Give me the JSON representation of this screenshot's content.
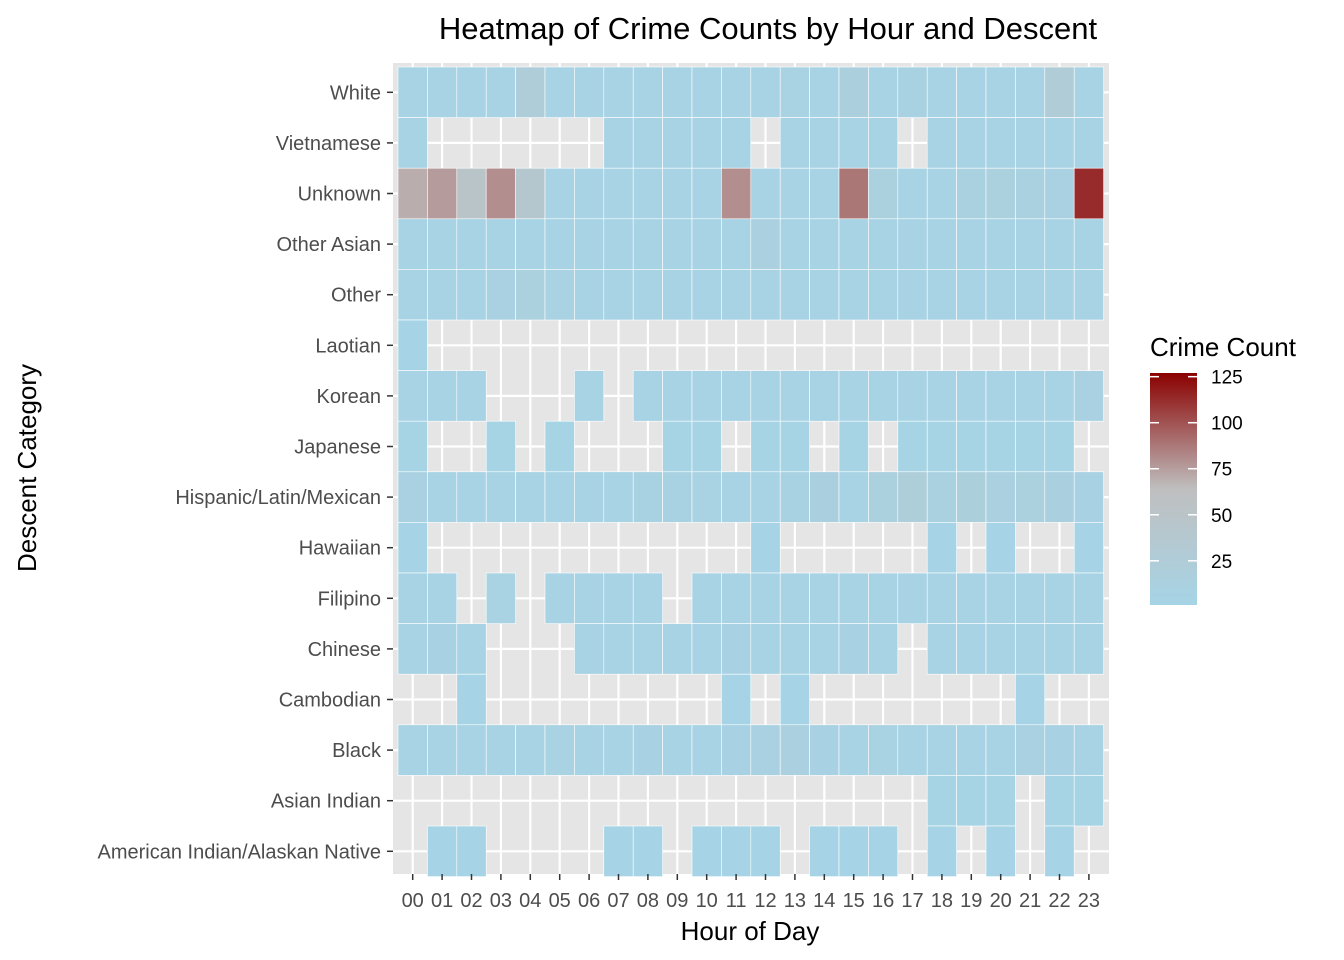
{
  "chart_data": {
    "type": "heatmap",
    "title": "Heatmap of Crime Counts by Hour and Descent",
    "xlabel": "Hour of Day",
    "ylabel": "Descent Category",
    "x_categories": [
      "00",
      "01",
      "02",
      "03",
      "04",
      "05",
      "06",
      "07",
      "08",
      "09",
      "10",
      "11",
      "12",
      "13",
      "14",
      "15",
      "16",
      "17",
      "18",
      "19",
      "20",
      "21",
      "22",
      "23"
    ],
    "y_categories": [
      "White",
      "Vietnamese",
      "Unknown",
      "Other Asian",
      "Other",
      "Laotian",
      "Korean",
      "Japanese",
      "Hispanic/Latin/Mexican",
      "Hawaiian",
      "Filipino",
      "Chinese",
      "Cambodian",
      "Black",
      "Asian Indian",
      "American Indian/Alaskan Native"
    ],
    "rows": [
      {
        "name": "White",
        "values": [
          5,
          5,
          5,
          5,
          22,
          5,
          5,
          5,
          5,
          5,
          5,
          5,
          5,
          8,
          5,
          16,
          5,
          7,
          5,
          5,
          5,
          5,
          26,
          5
        ]
      },
      {
        "name": "Vietnamese",
        "values": [
          3,
          null,
          null,
          null,
          null,
          null,
          null,
          3,
          3,
          3,
          3,
          3,
          null,
          3,
          3,
          3,
          3,
          null,
          3,
          3,
          3,
          3,
          3,
          3
        ]
      },
      {
        "name": "Unknown",
        "values": [
          70,
          76,
          48,
          80,
          40,
          5,
          5,
          5,
          5,
          5,
          5,
          80,
          5,
          5,
          5,
          88,
          14,
          5,
          5,
          11,
          14,
          11,
          9,
          113
        ]
      },
      {
        "name": "Other Asian",
        "values": [
          3,
          3,
          3,
          3,
          3,
          3,
          3,
          3,
          3,
          3,
          3,
          3,
          13,
          3,
          3,
          3,
          3,
          3,
          3,
          3,
          3,
          3,
          3,
          3
        ]
      },
      {
        "name": "Other",
        "values": [
          5,
          5,
          5,
          9,
          14,
          8,
          5,
          5,
          5,
          5,
          5,
          5,
          5,
          5,
          5,
          5,
          5,
          5,
          5,
          5,
          5,
          5,
          5,
          5
        ]
      },
      {
        "name": "Laotian",
        "values": [
          1,
          null,
          null,
          null,
          null,
          null,
          null,
          null,
          null,
          null,
          null,
          null,
          null,
          null,
          null,
          null,
          null,
          null,
          null,
          null,
          null,
          null,
          null,
          null
        ]
      },
      {
        "name": "Korean",
        "values": [
          3,
          3,
          3,
          null,
          null,
          null,
          3,
          null,
          3,
          3,
          3,
          3,
          3,
          3,
          3,
          3,
          3,
          3,
          3,
          3,
          3,
          3,
          3,
          9
        ]
      },
      {
        "name": "Japanese",
        "values": [
          2,
          null,
          null,
          2,
          null,
          2,
          null,
          null,
          null,
          2,
          2,
          null,
          2,
          2,
          null,
          2,
          null,
          2,
          2,
          2,
          2,
          2,
          2,
          null
        ]
      },
      {
        "name": "Hispanic/Latin/Mexican",
        "values": [
          9,
          5,
          5,
          5,
          5,
          5,
          5,
          5,
          7,
          7,
          8,
          5,
          5,
          7,
          12,
          5,
          14,
          20,
          10,
          17,
          13,
          14,
          12,
          6
        ]
      },
      {
        "name": "Hawaiian",
        "values": [
          1,
          null,
          null,
          null,
          null,
          null,
          null,
          null,
          null,
          null,
          null,
          null,
          1,
          null,
          null,
          null,
          null,
          null,
          1,
          null,
          1,
          null,
          null,
          1
        ]
      },
      {
        "name": "Filipino",
        "values": [
          3,
          3,
          null,
          8,
          null,
          3,
          3,
          3,
          3,
          null,
          3,
          3,
          3,
          3,
          3,
          3,
          3,
          3,
          3,
          3,
          3,
          3,
          3,
          3
        ]
      },
      {
        "name": "Chinese",
        "values": [
          4,
          6,
          4,
          null,
          null,
          null,
          4,
          4,
          4,
          4,
          4,
          6,
          4,
          4,
          4,
          6,
          4,
          null,
          4,
          4,
          4,
          4,
          4,
          4
        ]
      },
      {
        "name": "Cambodian",
        "values": [
          null,
          null,
          1,
          null,
          null,
          null,
          null,
          null,
          null,
          null,
          null,
          1,
          null,
          1,
          null,
          null,
          null,
          null,
          null,
          null,
          null,
          1,
          null,
          null
        ]
      },
      {
        "name": "Black",
        "values": [
          5,
          5,
          5,
          5,
          5,
          8,
          5,
          5,
          6,
          5,
          5,
          6,
          9,
          13,
          6,
          5,
          8,
          5,
          5,
          5,
          5,
          9,
          6,
          5
        ]
      },
      {
        "name": "Asian Indian",
        "values": [
          null,
          null,
          null,
          null,
          null,
          null,
          null,
          null,
          null,
          null,
          null,
          null,
          null,
          null,
          null,
          null,
          null,
          null,
          2,
          2,
          2,
          null,
          2,
          2
        ]
      },
      {
        "name": "American Indian/Alaskan Native",
        "values": [
          null,
          1,
          1,
          null,
          null,
          null,
          null,
          1,
          1,
          null,
          1,
          1,
          1,
          null,
          1,
          1,
          1,
          null,
          1,
          null,
          1,
          null,
          1,
          null
        ]
      }
    ],
    "legend": {
      "title": "Crime Count",
      "position": "right",
      "ticks": [
        25,
        50,
        75,
        100,
        125
      ],
      "min": 1,
      "max": 127,
      "low_color": "#a6d4e6",
      "mid_color": "#bfbfbf",
      "high_color": "#8b0000"
    },
    "grid": true,
    "panel_background": "#e5e5e5",
    "missing_cell": "panel background shows through"
  }
}
